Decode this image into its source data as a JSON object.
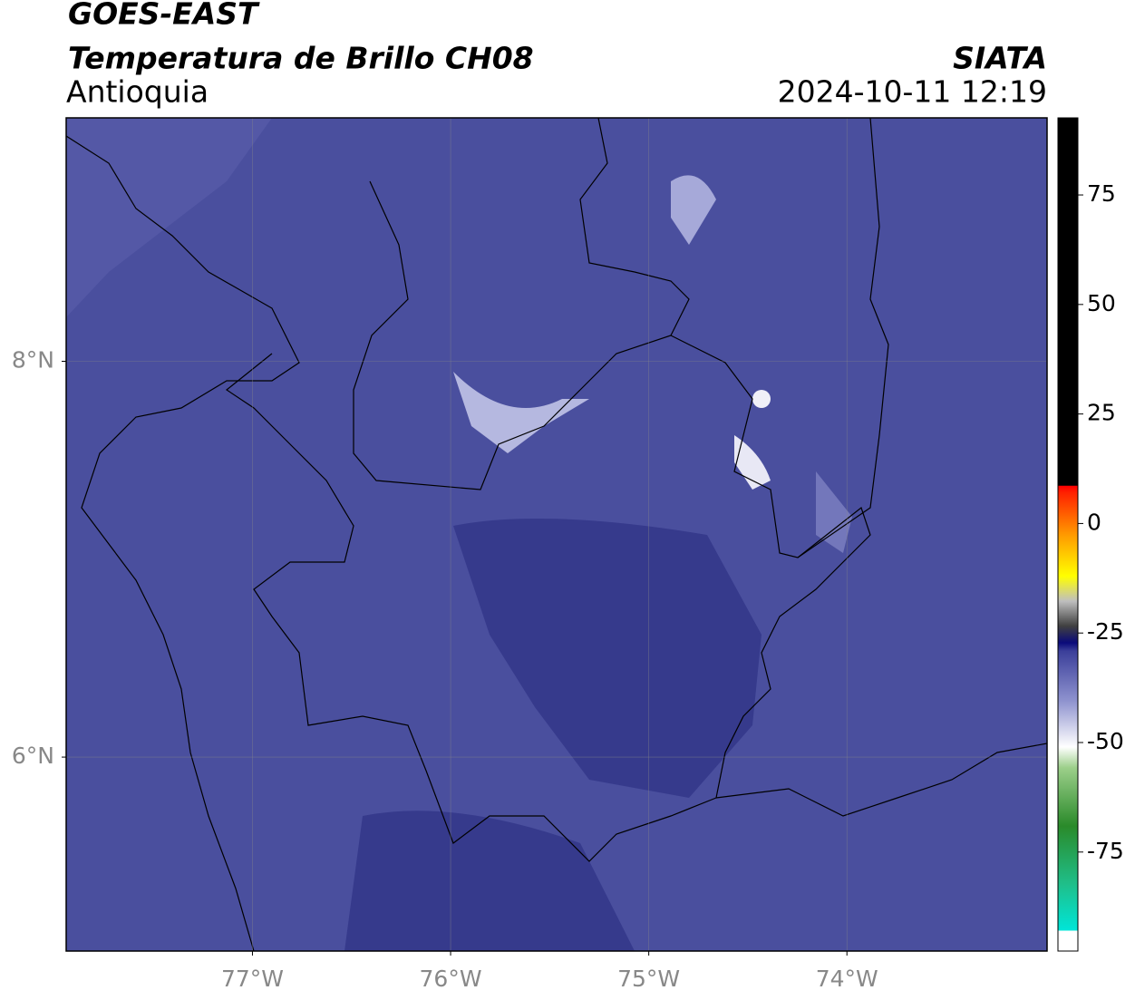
{
  "header": {
    "title": "GOES-EAST",
    "subtitle": "Temperatura de Brillo CH08",
    "region": "Antioquia",
    "source": "SIATA",
    "datetime": "2024-10-11 12:19"
  },
  "map": {
    "xlim": [
      -77.94,
      -72.99
    ],
    "ylim": [
      5.02,
      9.23
    ],
    "xticks": [
      {
        "value": -77,
        "label": "77°W"
      },
      {
        "value": -76,
        "label": "76°W"
      },
      {
        "value": -75,
        "label": "75°W"
      },
      {
        "value": -74,
        "label": "74°W"
      }
    ],
    "yticks": [
      {
        "value": 8,
        "label": "8°N"
      },
      {
        "value": 6,
        "label": "6°N"
      }
    ],
    "grid": true
  },
  "colorbar": {
    "lim": [
      -97.6,
      92.6
    ],
    "ticks": [
      75,
      50,
      25,
      0,
      -25,
      -50,
      -75
    ]
  }
}
